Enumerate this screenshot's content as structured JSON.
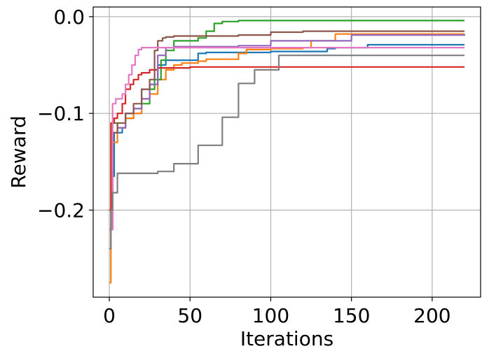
{
  "chart_data": {
    "type": "line",
    "title": "",
    "xlabel": "Iterations",
    "ylabel": "Reward",
    "xlim": [
      -10,
      230
    ],
    "ylim": [
      -0.29,
      0.01
    ],
    "xticks": [
      0,
      50,
      100,
      150,
      200
    ],
    "xtick_labels": [
      "0",
      "50",
      "100",
      "150",
      "200"
    ],
    "yticks": [
      0.0,
      -0.1,
      -0.2
    ],
    "ytick_labels": [
      "0.0",
      "−0.1",
      "−0.2"
    ],
    "grid": true,
    "legend": "none",
    "series": [
      {
        "color": "#1f77b4",
        "x": [
          0,
          2,
          3,
          5,
          8,
          10,
          15,
          20,
          25,
          30,
          35,
          45,
          55,
          60,
          80,
          100,
          130,
          135,
          140,
          160,
          220
        ],
        "y": [
          -0.22,
          -0.165,
          -0.12,
          -0.12,
          -0.115,
          -0.105,
          -0.1,
          -0.075,
          -0.07,
          -0.05,
          -0.045,
          -0.045,
          -0.038,
          -0.037,
          -0.037,
          -0.036,
          -0.036,
          -0.033,
          -0.032,
          -0.029,
          -0.029
        ]
      },
      {
        "color": "#ff7f0e",
        "x": [
          0,
          1,
          2,
          5,
          10,
          15,
          20,
          25,
          30,
          35,
          40,
          45,
          55,
          60,
          80,
          85,
          100,
          120,
          125,
          140,
          220
        ],
        "y": [
          -0.275,
          -0.2,
          -0.13,
          -0.115,
          -0.105,
          -0.1,
          -0.085,
          -0.08,
          -0.065,
          -0.055,
          -0.05,
          -0.048,
          -0.046,
          -0.044,
          -0.038,
          -0.034,
          -0.033,
          -0.032,
          -0.025,
          -0.018,
          -0.018
        ]
      },
      {
        "color": "#2ca02c",
        "x": [
          0,
          2,
          5,
          10,
          15,
          20,
          25,
          28,
          32,
          35,
          40,
          55,
          60,
          65,
          70,
          80,
          100,
          120,
          150,
          180,
          200,
          220
        ],
        "y": [
          -0.22,
          -0.11,
          -0.115,
          -0.1,
          -0.095,
          -0.09,
          -0.075,
          -0.065,
          -0.045,
          -0.035,
          -0.025,
          -0.022,
          -0.015,
          -0.007,
          -0.005,
          -0.004,
          -0.004,
          -0.004,
          -0.004,
          -0.004,
          -0.004,
          -0.004
        ]
      },
      {
        "color": "#d62728",
        "x": [
          0,
          1,
          3,
          5,
          8,
          10,
          13,
          15,
          18,
          20,
          25,
          30,
          50,
          100,
          150,
          220
        ],
        "y": [
          -0.2,
          -0.11,
          -0.105,
          -0.1,
          -0.09,
          -0.075,
          -0.07,
          -0.065,
          -0.06,
          -0.058,
          -0.055,
          -0.053,
          -0.052,
          -0.052,
          -0.052,
          -0.052
        ]
      },
      {
        "color": "#9467bd",
        "x": [
          0,
          2,
          5,
          10,
          15,
          20,
          25,
          30,
          35,
          40,
          60,
          80,
          100,
          150,
          220
        ],
        "y": [
          -0.22,
          -0.12,
          -0.115,
          -0.1,
          -0.095,
          -0.085,
          -0.07,
          -0.04,
          -0.032,
          -0.031,
          -0.031,
          -0.03,
          -0.025,
          -0.019,
          -0.018
        ]
      },
      {
        "color": "#8c564b",
        "x": [
          0,
          2,
          5,
          10,
          15,
          20,
          25,
          28,
          30,
          33,
          35,
          40,
          60,
          80,
          100,
          120,
          150,
          220
        ],
        "y": [
          -0.22,
          -0.12,
          -0.11,
          -0.1,
          -0.09,
          -0.075,
          -0.065,
          -0.035,
          -0.025,
          -0.022,
          -0.021,
          -0.02,
          -0.02,
          -0.019,
          -0.016,
          -0.015,
          -0.015,
          -0.015
        ]
      },
      {
        "color": "#e377c2",
        "x": [
          0,
          2,
          4,
          6,
          8,
          10,
          12,
          14,
          16,
          18,
          20,
          30,
          50,
          100,
          150,
          220
        ],
        "y": [
          -0.22,
          -0.09,
          -0.085,
          -0.085,
          -0.08,
          -0.07,
          -0.06,
          -0.05,
          -0.04,
          -0.034,
          -0.032,
          -0.032,
          -0.032,
          -0.032,
          -0.032,
          -0.032
        ]
      },
      {
        "color": "#7f7f7f",
        "x": [
          0,
          1,
          2,
          5,
          10,
          30,
          40,
          50,
          55,
          65,
          70,
          75,
          80,
          90,
          100,
          105,
          220
        ],
        "y": [
          -0.24,
          -0.2,
          -0.182,
          -0.162,
          -0.162,
          -0.16,
          -0.152,
          -0.152,
          -0.133,
          -0.133,
          -0.104,
          -0.104,
          -0.069,
          -0.055,
          -0.055,
          -0.04,
          -0.04
        ]
      }
    ]
  }
}
